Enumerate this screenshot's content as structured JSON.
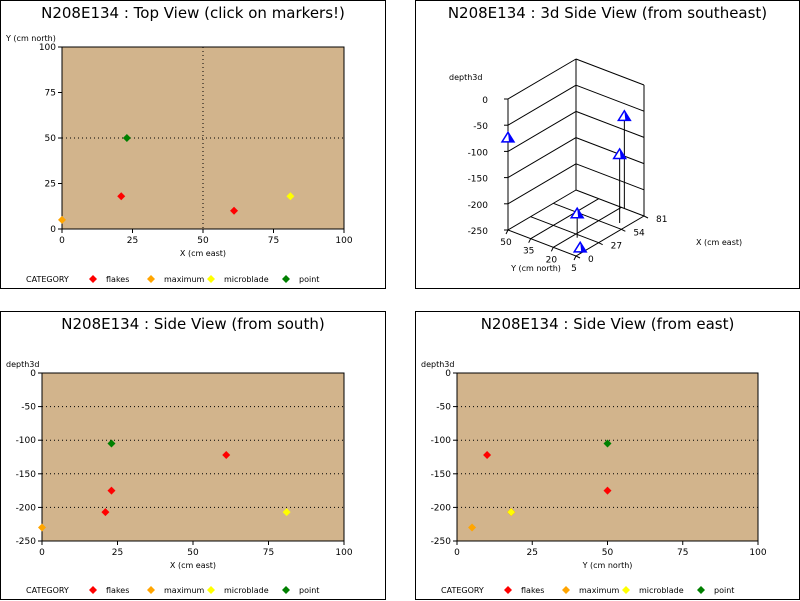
{
  "chart_data": [
    {
      "id": "top",
      "type": "scatter",
      "title": "N208E134 : Top View (click on markers!)",
      "xlabel": "X (cm east)",
      "ylabel": "Y (cm north)",
      "xlim": [
        0,
        100
      ],
      "ylim": [
        0,
        100
      ],
      "xticks": [
        "0",
        "25",
        "50",
        "75",
        "100"
      ],
      "yticks": [
        "0",
        "25",
        "50",
        "75",
        "100"
      ],
      "background": "#d2b48c",
      "reference_lines": {
        "x": [
          50
        ],
        "y": [
          50
        ]
      },
      "legend_title": "CATEGORY",
      "series": [
        {
          "name": "flakes",
          "color": "#ff0000",
          "points": [
            [
              21,
              18
            ],
            [
              61,
              10
            ]
          ]
        },
        {
          "name": "maximum",
          "color": "#ffa500",
          "points": [
            [
              0,
              5
            ]
          ]
        },
        {
          "name": "microblade",
          "color": "#ffff00",
          "points": [
            [
              81,
              18
            ]
          ]
        },
        {
          "name": "point",
          "color": "#008000",
          "points": [
            [
              23,
              50
            ]
          ]
        }
      ]
    },
    {
      "id": "3d",
      "type": "scatter",
      "title": "N208E134 : 3d Side View (from southeast)",
      "zlabel": "depth3d",
      "xlabel": "X (cm east)",
      "ylabel": "Y (cm north)",
      "zticks": [
        "0",
        "-50",
        "-100",
        "-150",
        "-200",
        "-250"
      ],
      "xticks": [
        "0",
        "27",
        "54",
        "81"
      ],
      "yticks": [
        "50",
        "35",
        "20",
        "5"
      ],
      "marker_color": "#0000ff",
      "points": [
        {
          "x": 0,
          "y": 50,
          "z": -75
        },
        {
          "x": 81,
          "y": 18,
          "z": -75
        },
        {
          "x": 61,
          "y": 10,
          "z": -120
        },
        {
          "x": 23,
          "y": 17,
          "z": -205
        },
        {
          "x": 5,
          "y": 5,
          "z": -240
        }
      ]
    },
    {
      "id": "south",
      "type": "scatter",
      "title": "N208E134 : Side View (from south)",
      "xlabel": "X (cm east)",
      "ylabel": "depth3d",
      "xlim": [
        0,
        100
      ],
      "ylim": [
        -250,
        0
      ],
      "xticks": [
        "0",
        "25",
        "50",
        "75",
        "100"
      ],
      "yticks": [
        "0",
        "-50",
        "-100",
        "-150",
        "-200",
        "-250"
      ],
      "background": "#d2b48c",
      "reference_lines": {
        "y": [
          -50,
          -100,
          -150,
          -200
        ]
      },
      "legend_title": "CATEGORY",
      "series": [
        {
          "name": "flakes",
          "color": "#ff0000",
          "points": [
            [
              61,
              -122
            ],
            [
              23,
              -175
            ],
            [
              21,
              -207
            ]
          ]
        },
        {
          "name": "maximum",
          "color": "#ffa500",
          "points": [
            [
              0,
              -230
            ]
          ]
        },
        {
          "name": "microblade",
          "color": "#ffff00",
          "points": [
            [
              81,
              -207
            ]
          ]
        },
        {
          "name": "point",
          "color": "#008000",
          "points": [
            [
              23,
              -105
            ]
          ]
        }
      ]
    },
    {
      "id": "east",
      "type": "scatter",
      "title": "N208E134 : Side View (from east)",
      "xlabel": "Y (cm north)",
      "ylabel": "depth3d",
      "xlim": [
        0,
        100
      ],
      "ylim": [
        -250,
        0
      ],
      "xticks": [
        "0",
        "25",
        "50",
        "75",
        "100"
      ],
      "yticks": [
        "0",
        "-50",
        "-100",
        "-150",
        "-200",
        "-250"
      ],
      "background": "#d2b48c",
      "reference_lines": {
        "y": [
          -50,
          -100,
          -150,
          -200
        ]
      },
      "legend_title": "CATEGORY",
      "series": [
        {
          "name": "flakes",
          "color": "#ff0000",
          "points": [
            [
              10,
              -122
            ],
            [
              50,
              -175
            ],
            [
              18,
              -207
            ]
          ]
        },
        {
          "name": "maximum",
          "color": "#ffa500",
          "points": [
            [
              5,
              -230
            ]
          ]
        },
        {
          "name": "microblade",
          "color": "#ffff00",
          "points": [
            [
              18,
              -207
            ]
          ]
        },
        {
          "name": "point",
          "color": "#008000",
          "points": [
            [
              50,
              -105
            ]
          ]
        }
      ]
    }
  ]
}
